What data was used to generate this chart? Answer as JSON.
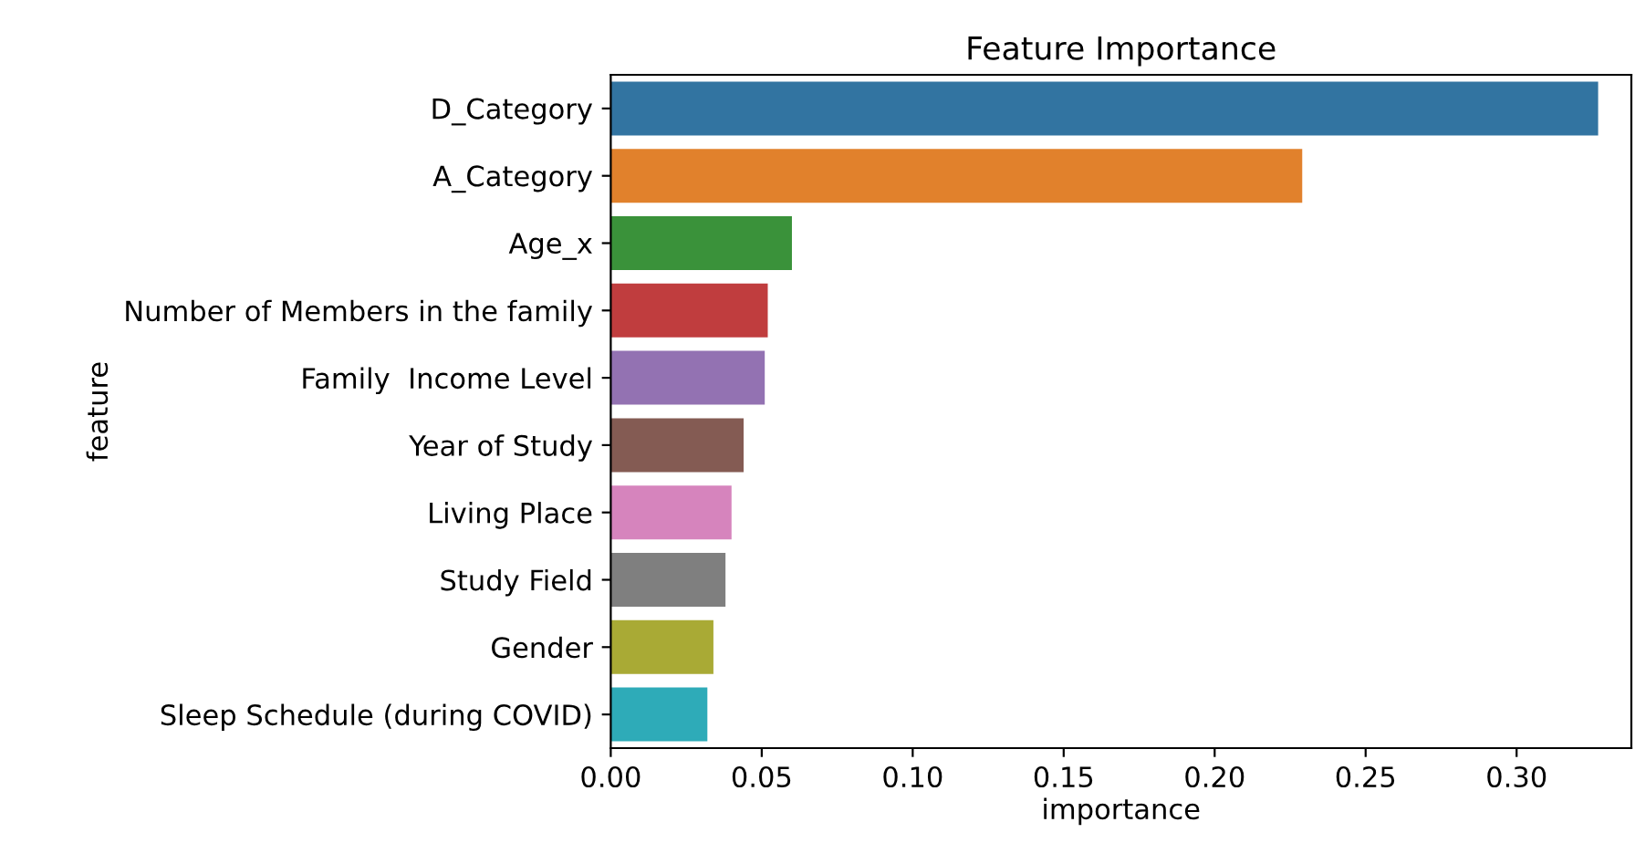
{
  "chart_data": {
    "type": "bar",
    "orientation": "horizontal",
    "title": "Feature Importance",
    "xlabel": "importance",
    "ylabel": "feature",
    "categories": [
      "D_Category",
      "A_Category",
      "Age_x",
      "Number of Members in the family",
      "Family  Income Level",
      "Year of Study",
      "Living Place",
      "Study Field",
      "Gender",
      "Sleep Schedule (during COVID)"
    ],
    "values": [
      0.327,
      0.229,
      0.06,
      0.052,
      0.051,
      0.044,
      0.04,
      0.038,
      0.034,
      0.032
    ],
    "colors": [
      "#3274a1",
      "#e1812c",
      "#3a923a",
      "#c03d3e",
      "#9372b2",
      "#845b53",
      "#d684bd",
      "#7f7f7f",
      "#a9aa35",
      "#2eabb8"
    ],
    "xlim": [
      0,
      0.338
    ],
    "xticks": [
      {
        "value": 0,
        "label": "0.00"
      },
      {
        "value": 0.05,
        "label": "0.05"
      },
      {
        "value": 0.1,
        "label": "0.10"
      },
      {
        "value": 0.15,
        "label": "0.15"
      },
      {
        "value": 0.2,
        "label": "0.20"
      },
      {
        "value": 0.25,
        "label": "0.25"
      },
      {
        "value": 0.3,
        "label": "0.30"
      }
    ],
    "grid": false,
    "legend": false
  }
}
